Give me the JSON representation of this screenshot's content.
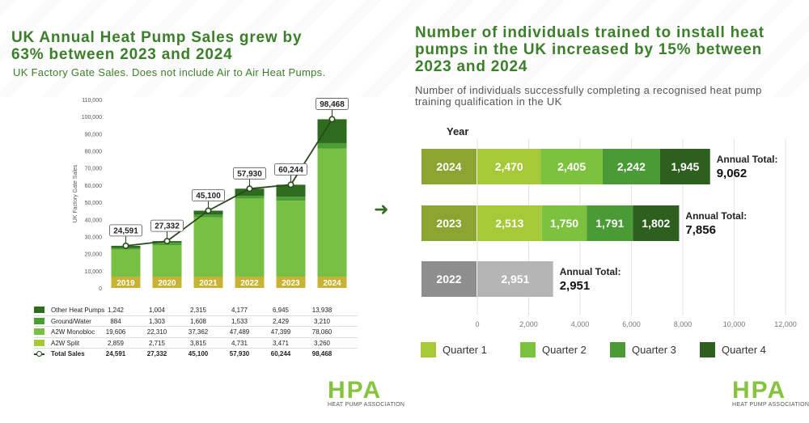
{
  "left": {
    "title": "UK Annual Heat Pump Sales grew by 63% between 2023 and 2024",
    "subtitle": "UK Factory Gate Sales. Does not include Air to Air Heat Pumps."
  },
  "right": {
    "title": "Number of individuals trained to install heat pumps in the UK increased by 15% between 2023 and 2024",
    "subtitle": "Number of individuals successfully completing a recognised heat pump training qualification in the UK"
  },
  "logo": {
    "word_a": "H",
    "word_b": "P",
    "word_c": "A",
    "caption": "HEAT PUMP ASSOCIATION"
  },
  "arrow_icon": "arrow-right-icon",
  "colors": {
    "other_heat_pumps": "#2e6b1f",
    "ground_water": "#4a9e32",
    "a2w_monobloc": "#78c043",
    "a2w_split": "#a6c93a",
    "q1": "#a6c93a",
    "q2": "#7cc23e",
    "q3": "#4a9a35",
    "q4": "#2d5f1e",
    "year_label": "#8aa531",
    "year_label_2022": "#8e8e8e",
    "q1_2022": "#b5b5b5",
    "title_green": "#3b7f2a"
  },
  "chart_data": [
    {
      "type": "bar",
      "stacked": true,
      "categories": [
        "2019",
        "2020",
        "2021",
        "2022",
        "2023",
        "2024"
      ],
      "ylabel": "UK Factory Gate Sales",
      "ylim": [
        0,
        110000
      ],
      "yticks": [
        "0",
        "10,000",
        "20,000",
        "30,000",
        "40,000",
        "50,000",
        "60,000",
        "70,000",
        "80,000",
        "90,000",
        "100,000",
        "110,000"
      ],
      "series": [
        {
          "name": "A2W Split",
          "values": [
            2859,
            2715,
            3815,
            4731,
            3471,
            3260
          ],
          "display": [
            "2,859",
            "2,715",
            "3,815",
            "4,731",
            "3,471",
            "3,260"
          ]
        },
        {
          "name": "A2W Monobloc",
          "values": [
            19606,
            22310,
            37362,
            47489,
            47399,
            78060
          ],
          "display": [
            "19,606",
            "22,310",
            "37,362",
            "47,489",
            "47,399",
            "78,060"
          ]
        },
        {
          "name": "Ground/Water",
          "values": [
            884,
            1303,
            1608,
            1533,
            2429,
            3210
          ],
          "display": [
            "884",
            "1,303",
            "1,608",
            "1,533",
            "2,429",
            "3,210"
          ]
        },
        {
          "name": "Other Heat Pumps",
          "values": [
            1242,
            1004,
            2315,
            4177,
            6945,
            13938
          ],
          "display": [
            "1,242",
            "1,004",
            "2,315",
            "4,177",
            "6,945",
            "13,938"
          ]
        }
      ],
      "total": {
        "name": "Total Sales",
        "values": [
          24591,
          27332,
          45100,
          57930,
          60244,
          98468
        ],
        "display": [
          "24,591",
          "27,332",
          "45,100",
          "57,930",
          "60,244",
          "98,468"
        ]
      },
      "legend": "table-below"
    },
    {
      "type": "bar",
      "orientation": "horizontal",
      "stacked": true,
      "y_header": "Year",
      "categories": [
        "2024",
        "2023",
        "2022"
      ],
      "xlim": [
        0,
        12000
      ],
      "xticks": [
        "0",
        "2,000",
        "4,000",
        "6,000",
        "8,000",
        "10,000",
        "12,000"
      ],
      "series": [
        {
          "name": "Quarter 1",
          "values": [
            2470,
            2513,
            2951
          ],
          "display": [
            "2,470",
            "2,513",
            "2,951"
          ]
        },
        {
          "name": "Quarter 2",
          "values": [
            2405,
            1750,
            null
          ],
          "display": [
            "2,405",
            "1,750",
            ""
          ]
        },
        {
          "name": "Quarter 3",
          "values": [
            2242,
            1791,
            null
          ],
          "display": [
            "2,242",
            "1,791",
            ""
          ]
        },
        {
          "name": "Quarter 4",
          "values": [
            1945,
            1802,
            null
          ],
          "display": [
            "1,945",
            "1,802",
            ""
          ]
        }
      ],
      "annual_total_label": "Annual Total:",
      "annual_totals": [
        "9,062",
        "7,856",
        "2,951"
      ],
      "legend": "bottom"
    }
  ]
}
